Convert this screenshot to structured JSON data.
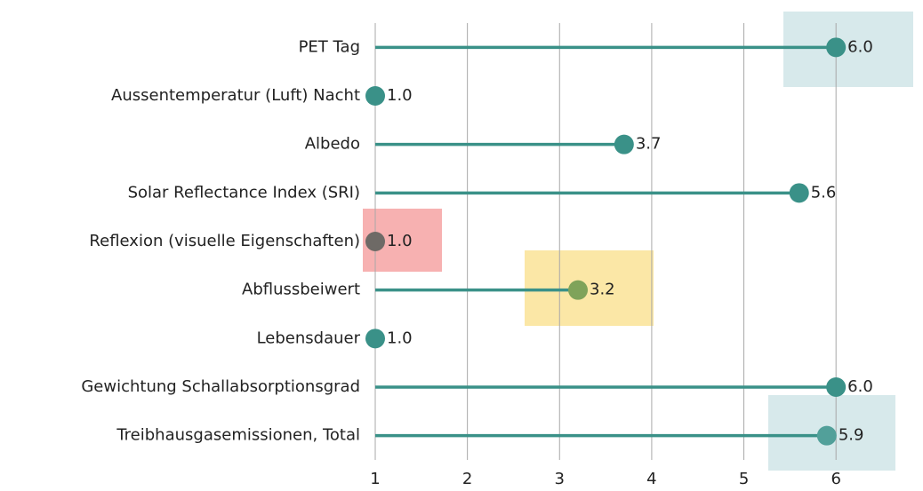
{
  "chart_data": {
    "type": "lollipop",
    "orientation": "horizontal",
    "categories": [
      "PET Tag",
      "Aussentemperatur (Luft) Nacht",
      "Albedo",
      "Solar Reflectance Index (SRI)",
      "Reflexion (visuelle Eigenschaften)",
      "Abflussbeiwert",
      "Lebensdauer",
      "Gewichtung Schallabsorptionsgrad",
      "Treibhausgasemissionen, Total"
    ],
    "values": [
      6.0,
      1.0,
      3.7,
      5.6,
      1.0,
      3.2,
      1.0,
      6.0,
      5.9
    ],
    "value_labels": [
      "6.0",
      "1.0",
      "3.7",
      "5.6",
      "1.0",
      "3.2",
      "1.0",
      "6.0",
      "5.9"
    ],
    "color": "#3a9188",
    "point_colors": [
      "#3a9188",
      "#3a9188",
      "#3a9188",
      "#3a9188",
      "#6e6a66",
      "#7fa35a",
      "#3a9188",
      "#3a9188",
      "#52a09a"
    ],
    "xlim": [
      1,
      6.5
    ],
    "xticks": [
      1,
      2,
      3,
      4,
      5,
      6
    ],
    "grid": true
  }
}
